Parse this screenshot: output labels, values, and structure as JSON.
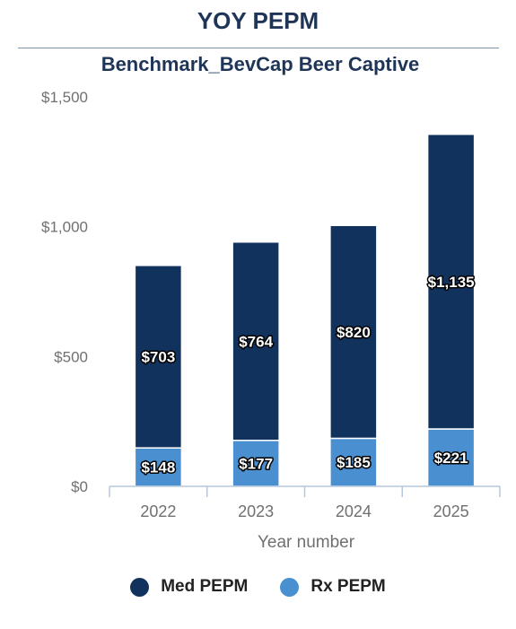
{
  "page": {
    "title": "YOY PEPM"
  },
  "chart_data": {
    "type": "bar",
    "stacked": true,
    "title": "Benchmark_BevCap Beer Captive",
    "xlabel": "Year number",
    "ylabel": "",
    "categories": [
      "2022",
      "2023",
      "2024",
      "2025"
    ],
    "ylim": [
      0,
      1500
    ],
    "yticks": [
      0,
      500,
      1000,
      1500
    ],
    "ytick_labels": [
      "$0",
      "$500",
      "$1,000",
      "$1,500"
    ],
    "series": [
      {
        "name": "Rx PEPM",
        "values": [
          148,
          177,
          185,
          221
        ],
        "labels": [
          "$148",
          "$177",
          "$185",
          "$221"
        ],
        "color": "#4a8fcf"
      },
      {
        "name": "Med PEPM",
        "values": [
          703,
          764,
          820,
          1135
        ],
        "labels": [
          "$703",
          "$764",
          "$820",
          "$1,135"
        ],
        "color": "#12325e"
      }
    ],
    "legend": {
      "position": "bottom",
      "order": [
        "Med PEPM",
        "Rx PEPM"
      ]
    },
    "colors": {
      "title": "#1e3557",
      "axis": "#b5c7dd",
      "tick_label": "#707070"
    }
  }
}
